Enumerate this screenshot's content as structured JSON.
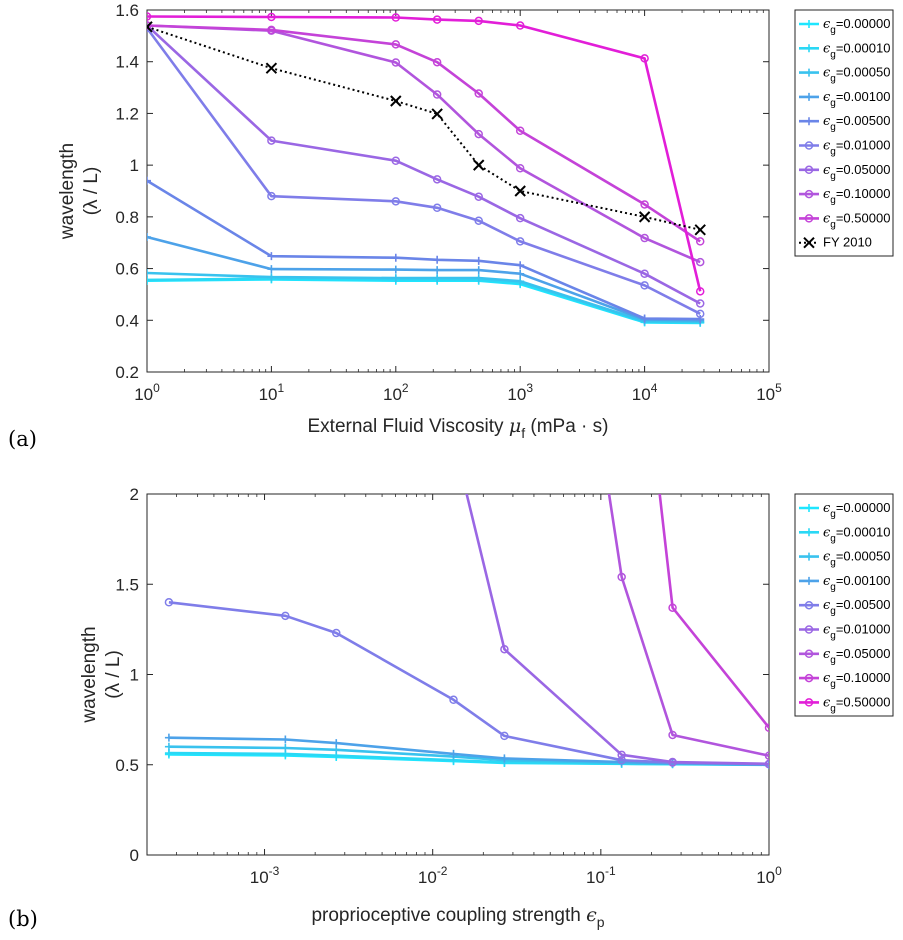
{
  "chart_data": [
    {
      "panel_label": "(a)",
      "type": "line",
      "xlabel": "External Fluid Viscosity",
      "xlabel_symbol": "μ",
      "xlabel_symbol_sub": "f",
      "xlabel_unit": "(mPa · s)",
      "ylabel_line1": "wavelength",
      "ylabel_line2": "(λ / L)",
      "xscale": "log",
      "xlim": [
        1,
        100000
      ],
      "ylim": [
        0.2,
        1.6
      ],
      "x_ticks": [
        1,
        10,
        100,
        1000,
        10000,
        100000
      ],
      "x_tick_labels": [
        {
          "base": "10",
          "exp": "0"
        },
        {
          "base": "10",
          "exp": "1"
        },
        {
          "base": "10",
          "exp": "2"
        },
        {
          "base": "10",
          "exp": "3"
        },
        {
          "base": "10",
          "exp": "4"
        },
        {
          "base": "10",
          "exp": "5"
        }
      ],
      "y_ticks": [
        0.2,
        0.4,
        0.6,
        0.8,
        1,
        1.2,
        1.4,
        1.6
      ],
      "y_tick_labels": [
        "0.2",
        "0.4",
        "0.6",
        "0.8",
        "1",
        "1.2",
        "1.4",
        "1.6"
      ],
      "grid": false,
      "legend_position": "outside-right",
      "x": [
        1,
        10,
        100,
        215,
        464,
        1000,
        10000,
        28000
      ],
      "series": [
        {
          "sym": "ϵ",
          "sub": "g",
          "val": "=0.00000",
          "color": "#1ee6ff",
          "marker": "plus",
          "values": [
            0.553,
            0.558,
            0.553,
            0.553,
            0.553,
            0.54,
            0.392,
            0.39
          ]
        },
        {
          "sym": "ϵ",
          "sub": "g",
          "val": "=0.00010",
          "color": "#2ad8f5",
          "marker": "plus",
          "values": [
            0.556,
            0.561,
            0.558,
            0.558,
            0.556,
            0.545,
            0.394,
            0.392
          ]
        },
        {
          "sym": "ϵ",
          "sub": "g",
          "val": "=0.00050",
          "color": "#39c2ee",
          "marker": "plus",
          "values": [
            0.583,
            0.567,
            0.563,
            0.563,
            0.563,
            0.551,
            0.397,
            0.395
          ]
        },
        {
          "sym": "ϵ",
          "sub": "g",
          "val": "=0.00100",
          "color": "#4da2e9",
          "marker": "plus",
          "values": [
            0.722,
            0.598,
            0.596,
            0.594,
            0.594,
            0.58,
            0.403,
            0.4
          ]
        },
        {
          "sym": "ϵ",
          "sub": "g",
          "val": "=0.00500",
          "color": "#6a85e8",
          "marker": "plus",
          "values": [
            0.94,
            0.648,
            0.642,
            0.634,
            0.63,
            0.613,
            0.407,
            0.405
          ]
        },
        {
          "sym": "ϵ",
          "sub": "g",
          "val": "=0.01000",
          "color": "#7f7de9",
          "marker": "circle",
          "values": [
            1.53,
            0.88,
            0.86,
            0.835,
            0.785,
            0.705,
            0.535,
            0.425
          ]
        },
        {
          "sym": "ϵ",
          "sub": "g",
          "val": "=0.05000",
          "color": "#9a67e4",
          "marker": "circle",
          "values": [
            1.54,
            1.095,
            1.017,
            0.945,
            0.878,
            0.795,
            0.58,
            0.465
          ]
        },
        {
          "sym": "ϵ",
          "sub": "g",
          "val": "=0.10000",
          "color": "#b155dd",
          "marker": "circle",
          "values": [
            1.54,
            1.52,
            1.397,
            1.273,
            1.12,
            0.988,
            0.718,
            0.625
          ]
        },
        {
          "sym": "ϵ",
          "sub": "g",
          "val": "=0.50000",
          "color": "#c443d8",
          "marker": "circle",
          "values": [
            1.54,
            1.523,
            1.467,
            1.398,
            1.277,
            1.133,
            0.848,
            0.705
          ]
        },
        {
          "sym": "ϵ",
          "sub": "g",
          "val": "=0.50000",
          "legend": false,
          "color": "#e21ed8",
          "marker": "circle",
          "values": [
            1.575,
            1.573,
            1.571,
            1.563,
            1.558,
            1.54,
            1.413,
            0.512
          ]
        },
        {
          "name": "FY 2010",
          "color": "#000000",
          "marker": "x",
          "dash": true,
          "x": [
            1,
            10,
            100,
            215,
            464,
            1000,
            10000,
            28000
          ],
          "values": [
            1.535,
            1.375,
            1.248,
            1.198,
            1.0,
            0.9,
            0.8,
            0.75
          ]
        }
      ]
    },
    {
      "panel_label": "(b)",
      "type": "line",
      "xlabel": "proprioceptive coupling strength",
      "xlabel_symbol": "ϵ",
      "xlabel_symbol_sub": "p",
      "ylabel_line1": "wavelength",
      "ylabel_line2": "(λ / L)",
      "xscale": "log",
      "xlim": [
        0.0002,
        1
      ],
      "ylim": [
        0,
        2
      ],
      "x_ticks": [
        0.001,
        0.01,
        0.1,
        1
      ],
      "x_tick_labels": [
        {
          "base": "10",
          "exp": "-3"
        },
        {
          "base": "10",
          "exp": "-2"
        },
        {
          "base": "10",
          "exp": "-1"
        },
        {
          "base": "10",
          "exp": "0"
        }
      ],
      "y_ticks": [
        0,
        0.5,
        1,
        1.5,
        2
      ],
      "y_tick_labels": [
        "0",
        "0.5",
        "1",
        "1.5",
        "2"
      ],
      "grid": false,
      "legend_position": "outside-right",
      "x": [
        0.00027,
        0.00133,
        0.00267,
        0.0133,
        0.0267,
        0.133,
        0.267,
        1
      ],
      "series": [
        {
          "sym": "ϵ",
          "sub": "g",
          "val": "=0.00000",
          "color": "#1ee6ff",
          "marker": "plus",
          "values": [
            0.557,
            0.552,
            0.543,
            0.52,
            0.51,
            0.505,
            0.503,
            0.5
          ]
        },
        {
          "sym": "ϵ",
          "sub": "g",
          "val": "=0.00010",
          "color": "#2ad8f5",
          "marker": "plus",
          "values": [
            0.565,
            0.56,
            0.55,
            0.525,
            0.513,
            0.506,
            0.504,
            0.5
          ]
        },
        {
          "sym": "ϵ",
          "sub": "g",
          "val": "=0.00050",
          "color": "#39c2ee",
          "marker": "plus",
          "values": [
            0.6,
            0.593,
            0.583,
            0.545,
            0.525,
            0.51,
            0.506,
            0.5
          ]
        },
        {
          "sym": "ϵ",
          "sub": "g",
          "val": "=0.00100",
          "color": "#4da2e9",
          "marker": "plus",
          "values": [
            0.65,
            0.64,
            0.62,
            0.56,
            0.535,
            0.515,
            0.508,
            0.5
          ]
        },
        {
          "sym": "ϵ",
          "sub": "g",
          "val": "=0.00500",
          "color": "#7f7de9",
          "marker": "circle",
          "values": [
            1.4,
            1.325,
            1.23,
            0.86,
            0.66,
            0.525,
            0.512,
            0.503
          ]
        },
        {
          "sym": "ϵ",
          "sub": "g",
          "val": "=0.01000",
          "color": "#9a67e4",
          "marker": "circle",
          "x": [
            0.0133,
            0.0267,
            0.133,
            0.267,
            1
          ],
          "values": [
            2.3,
            1.14,
            0.555,
            0.515,
            0.505
          ]
        },
        {
          "sym": "ϵ",
          "sub": "g",
          "val": "=0.05000",
          "color": "#b155dd",
          "marker": "circle",
          "x": [
            0.1,
            0.133,
            0.267,
            1
          ],
          "values": [
            2.3,
            1.54,
            0.665,
            0.55
          ]
        },
        {
          "sym": "ϵ",
          "sub": "g",
          "val": "=0.10000",
          "color": "#c443d8",
          "marker": "circle",
          "x": [
            0.2,
            0.267,
            1
          ],
          "values": [
            2.4,
            1.37,
            0.705
          ]
        },
        {
          "sym": "ϵ",
          "sub": "g",
          "val": "=0.50000",
          "color": "#e21ed8",
          "marker": "circle",
          "x": [],
          "values": []
        }
      ]
    }
  ]
}
